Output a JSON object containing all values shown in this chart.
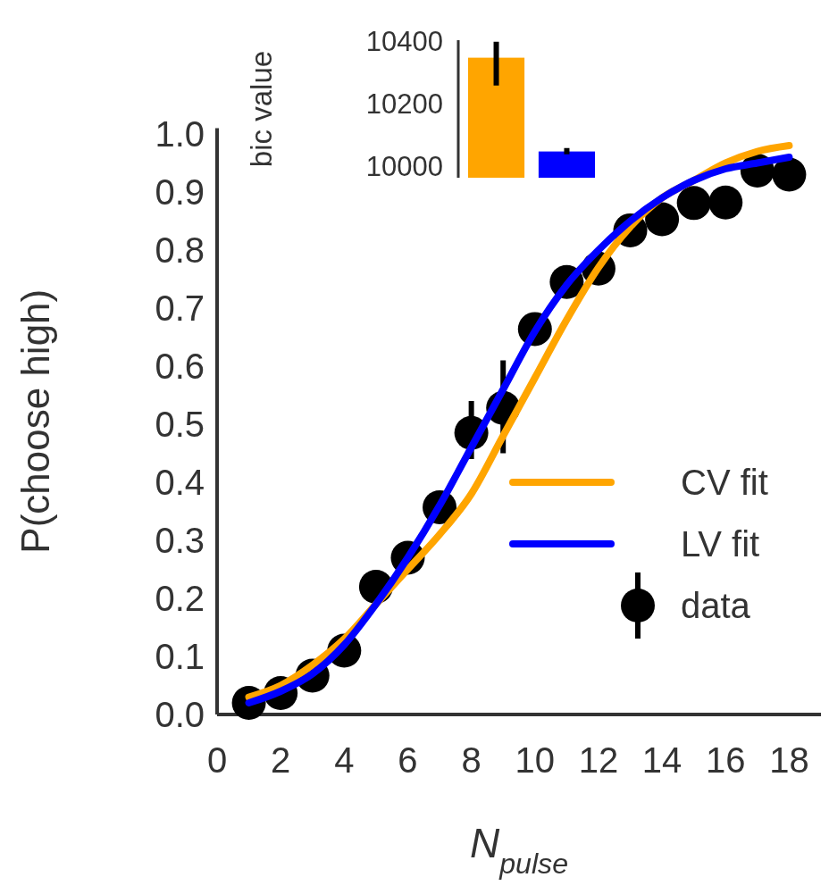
{
  "chart_data": [
    {
      "type": "line",
      "xlabel": "N$_{pulse}$",
      "ylabel": "P(choose high)",
      "xlim": [
        0,
        19
      ],
      "xticks": [
        0,
        2,
        4,
        6,
        8,
        10,
        12,
        14,
        16,
        18
      ],
      "ylim": [
        0,
        1.01
      ],
      "yticks": [
        {
          "value": 0,
          "label": "0.0"
        },
        {
          "value": 0.1,
          "label": "0.1"
        },
        {
          "value": 0.2,
          "label": "0.2"
        },
        {
          "value": 0.3,
          "label": "0.3"
        },
        {
          "value": 0.4,
          "label": "0.4"
        },
        {
          "value": 0.5,
          "label": "0.5"
        },
        {
          "value": 0.6,
          "label": "0.6"
        },
        {
          "value": 0.7,
          "label": "0.7"
        },
        {
          "value": 0.8,
          "label": "0.8"
        },
        {
          "value": 0.9,
          "label": "0.9"
        },
        {
          "value": 1,
          "label": "1.0"
        }
      ],
      "legend": "bottom right",
      "series": [
        {
          "name": "CV fit",
          "type": "line",
          "color": "#ffa500",
          "x": [
            1,
            2,
            3,
            4,
            5,
            6,
            7,
            8,
            9,
            10,
            11,
            12,
            13,
            14,
            15,
            16,
            17,
            18
          ],
          "values": [
            0.03,
            0.05,
            0.085,
            0.13,
            0.19,
            0.25,
            0.31,
            0.38,
            0.48,
            0.58,
            0.68,
            0.77,
            0.84,
            0.89,
            0.92,
            0.95,
            0.97,
            0.98
          ]
        },
        {
          "name": "LV fit",
          "type": "line",
          "color": "#0000ff",
          "x": [
            1,
            2,
            3,
            4,
            5,
            6,
            7,
            8,
            9,
            10,
            11,
            12,
            13,
            14,
            15,
            16,
            17,
            18
          ],
          "values": [
            0.02,
            0.04,
            0.07,
            0.12,
            0.19,
            0.27,
            0.36,
            0.46,
            0.56,
            0.66,
            0.74,
            0.8,
            0.85,
            0.89,
            0.92,
            0.94,
            0.95,
            0.96
          ]
        },
        {
          "name": "data",
          "type": "scatter",
          "marker": "circle",
          "color": "#000000",
          "x": [
            1,
            2,
            3,
            4,
            5,
            6,
            7,
            8,
            9,
            10,
            11,
            12,
            13,
            14,
            15,
            16,
            17,
            18
          ],
          "values": [
            0.02,
            0.037,
            0.067,
            0.11,
            0.22,
            0.27,
            0.357,
            0.485,
            0.528,
            0.664,
            0.745,
            0.768,
            0.834,
            0.853,
            0.881,
            0.882,
            0.937,
            0.93
          ],
          "errors": [
            null,
            null,
            null,
            null,
            null,
            null,
            null,
            [
              0.44,
              0.54
            ],
            [
              0.45,
              0.61
            ],
            null,
            null,
            null,
            null,
            null,
            null,
            null,
            null,
            null
          ]
        }
      ]
    },
    {
      "type": "bar",
      "ylabel": "bic value",
      "categories": [
        null,
        null
      ],
      "values": [
        10349,
        10049
      ],
      "colors": [
        "#ffa500",
        "#0000ff"
      ],
      "errors": [
        [
          10260,
          10400
        ],
        [
          10040,
          10060
        ]
      ],
      "ylim": [
        9965,
        10405
      ],
      "yticks": [
        10000,
        10200,
        10400
      ],
      "tick_labels": "y"
    }
  ]
}
